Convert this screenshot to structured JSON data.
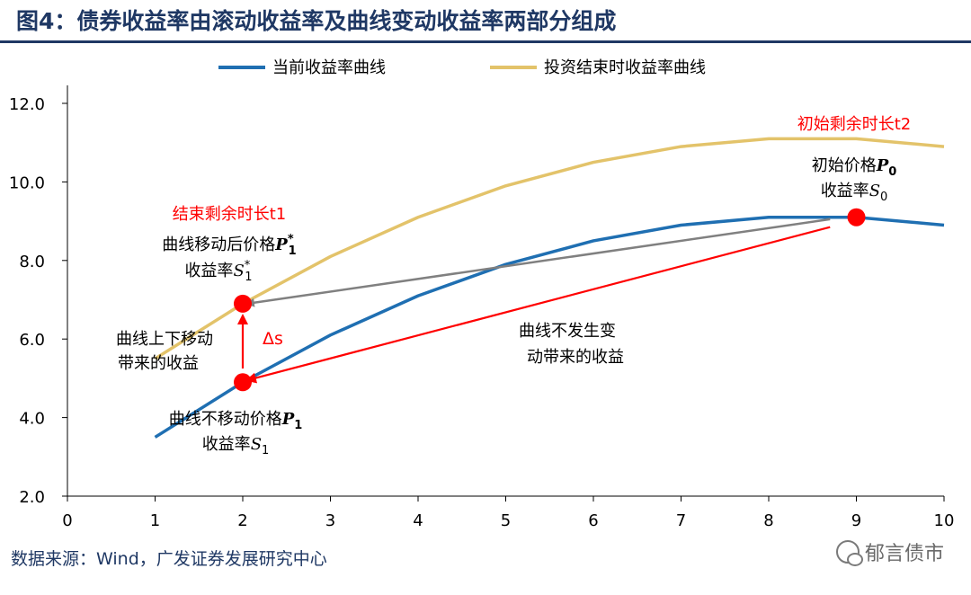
{
  "title": "图4：债券收益率由滚动收益率及曲线变动收益率两部分组成",
  "source": "数据来源：Wind，广发证券发展研究中心",
  "watermark": "郁言债市",
  "chart_data": {
    "type": "line",
    "title": "",
    "xlabel": "",
    "ylabel": "",
    "xlim": [
      0,
      10
    ],
    "ylim": [
      2.0,
      12.0
    ],
    "x_ticks": [
      "0",
      "1",
      "2",
      "3",
      "4",
      "5",
      "6",
      "7",
      "8",
      "9",
      "10"
    ],
    "y_ticks": [
      "2.0",
      "4.0",
      "6.0",
      "8.0",
      "10.0",
      "12.0"
    ],
    "legend_position": "top",
    "grid": false,
    "series": [
      {
        "name": "当前收益率曲线",
        "color": "#1f6fb2",
        "x": [
          1,
          2,
          3,
          4,
          5,
          6,
          7,
          8,
          9,
          10
        ],
        "y": [
          3.5,
          4.9,
          6.1,
          7.1,
          7.9,
          8.5,
          8.9,
          9.1,
          9.1,
          8.9
        ]
      },
      {
        "name": "投资结束时收益率曲线",
        "color": "#e3c36a",
        "x": [
          1,
          2,
          3,
          4,
          5,
          6,
          7,
          8,
          9,
          10
        ],
        "y": [
          5.5,
          6.9,
          8.1,
          9.1,
          9.9,
          10.5,
          10.9,
          11.1,
          11.1,
          10.9
        ]
      }
    ],
    "points": [
      {
        "x": 9,
        "y": 9.1,
        "color": "#ff0000"
      },
      {
        "x": 2,
        "y": 6.9,
        "color": "#ff0000"
      },
      {
        "x": 2,
        "y": 4.9,
        "color": "#ff0000"
      }
    ],
    "arrows": [
      {
        "from": [
          8.7,
          9.05
        ],
        "to": [
          2.05,
          6.9
        ],
        "color": "#808080"
      },
      {
        "from": [
          8.7,
          8.85
        ],
        "to": [
          2.05,
          4.95
        ],
        "color": "#ff0000"
      },
      {
        "from": [
          2,
          5.25
        ],
        "to": [
          2,
          6.6
        ],
        "color": "#ff0000"
      }
    ],
    "annotations": {
      "t2_label": "初始剩余时长t2",
      "p0_label": "初始价格",
      "p0_sym": "P",
      "p0_sub": "0",
      "s0_label": "收益率",
      "s0_sym": "S",
      "s0_sub": "0",
      "t1_label": "结束剩余时长t1",
      "p1star_label": "曲线移动后价格",
      "p1star_sym": "P",
      "p1star_sup": "*",
      "p1star_sub": "1",
      "s1star_label": "收益率",
      "s1star_sym": "S",
      "s1star_sup": "*",
      "s1star_sub": "1",
      "shift_line1": "曲线上下移动",
      "shift_line2": "带来的收益",
      "delta_s": "Δs",
      "nochange_line1": "曲线不发生变",
      "nochange_line2": "动带来的收益",
      "p1_label": "曲线不移动价格",
      "p1_sym": "P",
      "p1_sub": "1",
      "s1_label": "收益率",
      "s1_sym": "S",
      "s1_sub": "1"
    }
  }
}
